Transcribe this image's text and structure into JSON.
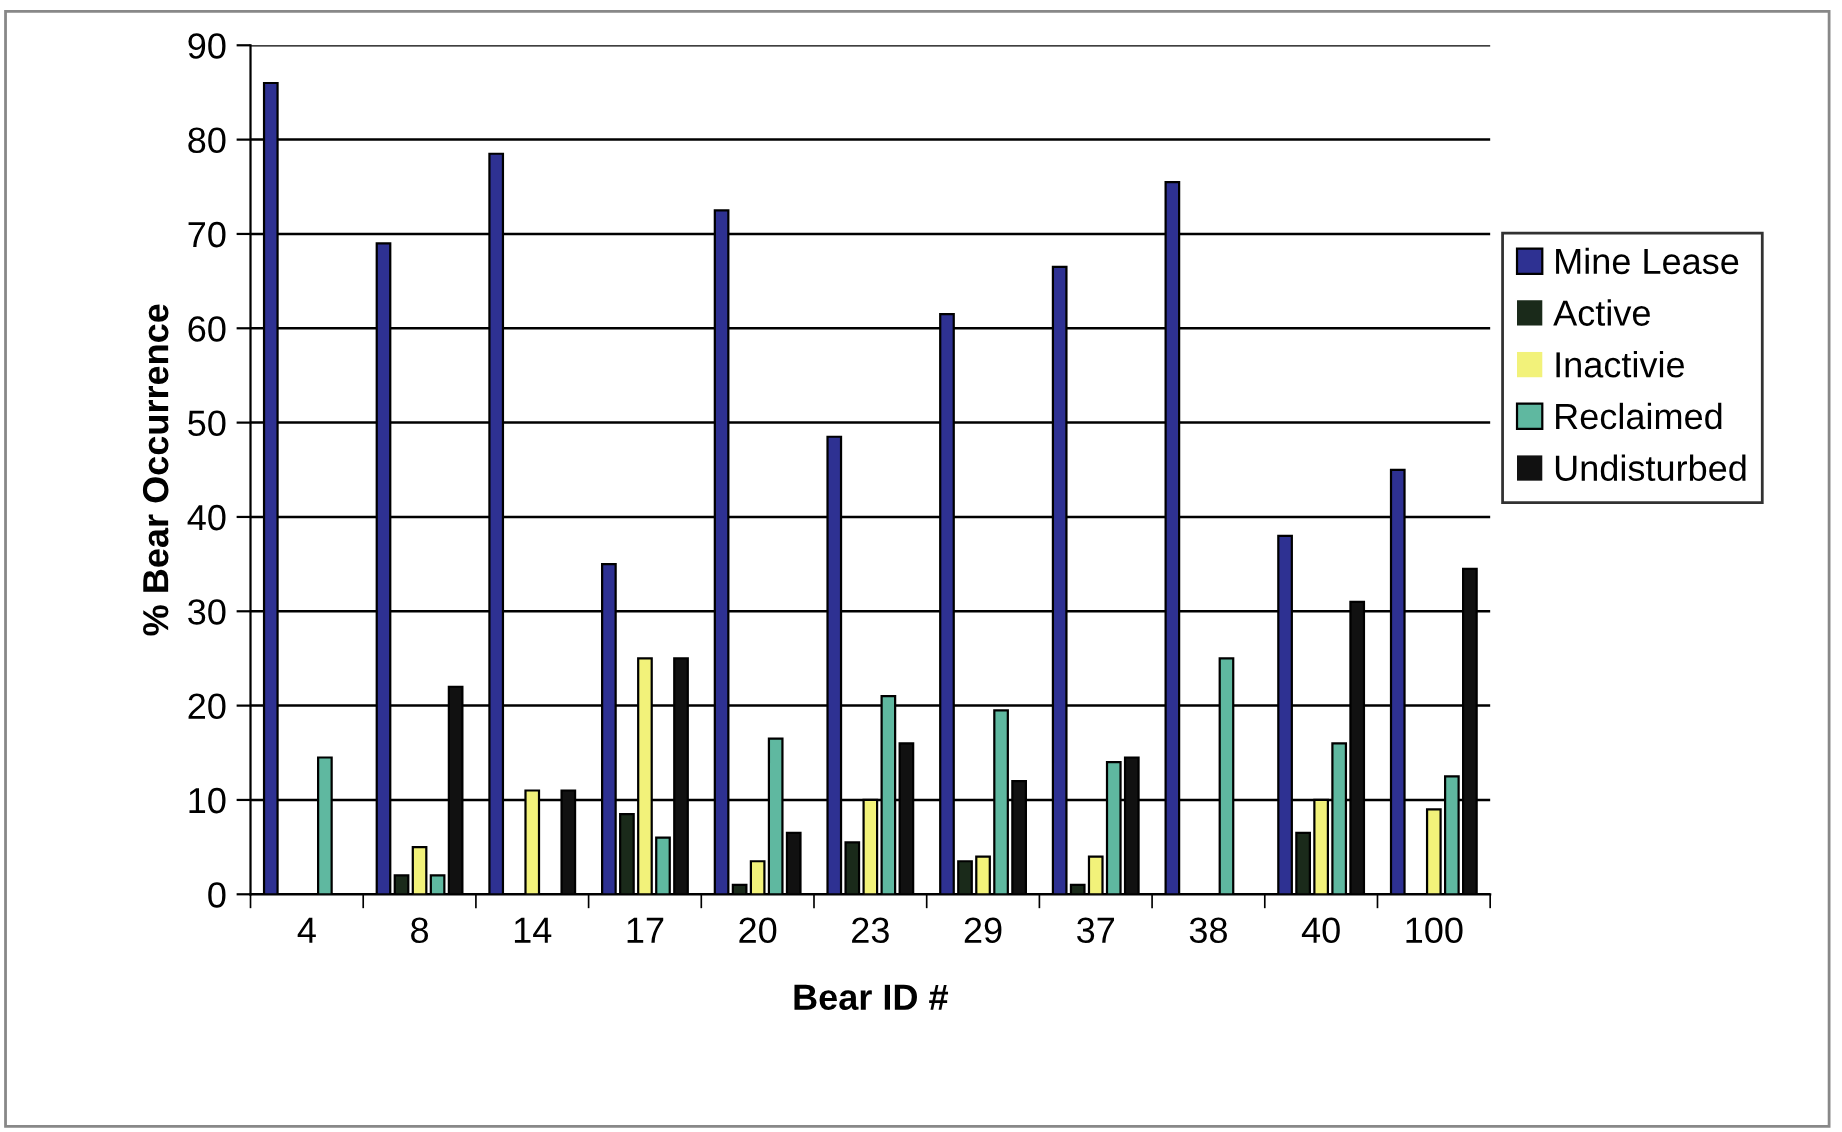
{
  "chart_data": {
    "type": "bar",
    "xlabel": "Bear ID #",
    "ylabel": "% Bear Occurrence",
    "categories": [
      "4",
      "8",
      "14",
      "17",
      "20",
      "23",
      "29",
      "37",
      "38",
      "40",
      "100"
    ],
    "series": [
      {
        "name": "Mine Lease",
        "color": "#2e3192",
        "values": [
          86,
          69,
          78.5,
          35,
          72.5,
          48.5,
          61.5,
          66.5,
          75.5,
          38,
          45
        ]
      },
      {
        "name": "Active",
        "color": "#1a2a1a",
        "values": [
          0,
          2,
          0,
          8.5,
          1,
          5.5,
          3.5,
          1,
          0,
          6.5,
          0
        ]
      },
      {
        "name": "Inactivie",
        "color": "#f2f27a",
        "values": [
          0,
          5,
          11,
          25,
          3.5,
          10,
          4,
          4,
          0,
          10,
          9
        ]
      },
      {
        "name": "Reclaimed",
        "color": "#5fb8a0",
        "values": [
          14.5,
          2,
          0,
          6,
          16.5,
          21,
          19.5,
          14,
          25,
          16,
          12.5
        ]
      },
      {
        "name": "Undisturbed",
        "color": "#111111",
        "values": [
          0,
          22,
          11,
          25,
          6.5,
          16,
          12,
          14.5,
          0,
          31,
          34.5
        ]
      }
    ],
    "ylim": [
      0,
      90
    ],
    "yticks": [
      0,
      10,
      20,
      30,
      40,
      50,
      60,
      70,
      80,
      90
    ],
    "grid": "y",
    "legend": "right"
  }
}
